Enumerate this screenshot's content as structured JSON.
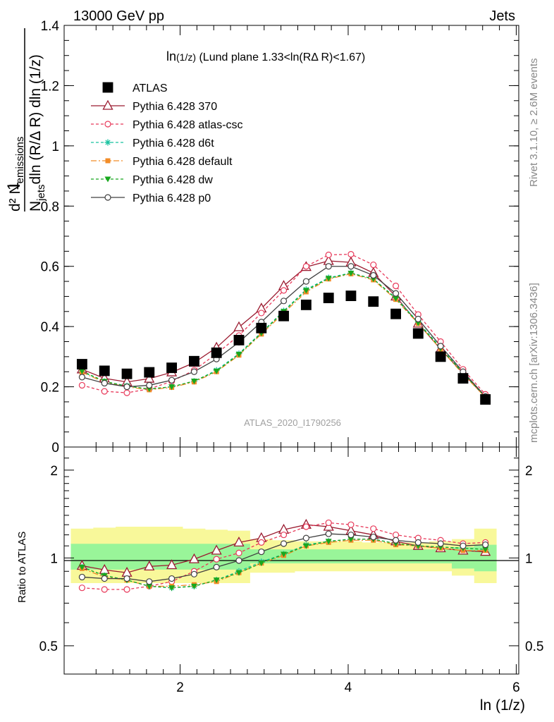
{
  "header": {
    "energy_label": "13000 GeV pp",
    "process_label": "Jets",
    "rivet_label": "Rivet 3.1.10, ≥ 2.6M events",
    "mcplots_label": "mcplots.cern.ch [arXiv:1306.3436]",
    "analysis_id": "ATLAS_2020_I1790256"
  },
  "main_panel": {
    "title_prefix": "ln",
    "title_frac": "(1/z)",
    "title_rest": " (Lund plane 1.33<ln(RΔ R)<1.67)",
    "ylabel": {
      "numerator": "d² N",
      "numerator_sub": "emissions",
      "denominator_1": "N",
      "denominator_sub": "jets",
      "denominator_2": "dln (R/Δ R) dln (1/z)",
      "prefix": "1"
    }
  },
  "ratio_panel": {
    "ylabel": "Ratio to ATLAS"
  },
  "xaxis": {
    "label": "ln (1/z)"
  },
  "colors": {
    "atlas": "#000000",
    "p370": "#9b1b30",
    "atlas_csc": "#e8395a",
    "d6t": "#19c2a0",
    "default": "#f28c28",
    "dw": "#18a81e",
    "p0": "#404040",
    "band_inner": "#99f599",
    "band_outer": "#f8f89a"
  },
  "chart_data": [
    {
      "type": "line",
      "x": [
        0.833,
        1.1,
        1.367,
        1.633,
        1.9,
        2.167,
        2.433,
        2.7,
        2.967,
        3.233,
        3.5,
        3.767,
        4.033,
        4.3,
        4.567,
        4.833,
        5.1,
        5.367,
        5.633
      ],
      "xlim": [
        0.62,
        6.03
      ],
      "ylim": [
        0,
        1.4
      ],
      "yticks": [
        0,
        0.2,
        0.4,
        0.6,
        0.8,
        1,
        1.2,
        1.4
      ],
      "xticks": [
        2,
        4,
        6
      ],
      "series": [
        {
          "name": "ATLAS",
          "marker": "square",
          "values": [
            0.275,
            0.253,
            0.243,
            0.248,
            0.263,
            0.285,
            0.313,
            0.355,
            0.395,
            0.435,
            0.472,
            0.495,
            0.502,
            0.483,
            0.442,
            0.377,
            0.3,
            0.228,
            0.158
          ]
        },
        {
          "name": "Pythia 6.428 370",
          "marker": "triangle-open",
          "values": [
            0.258,
            0.228,
            0.216,
            0.227,
            0.248,
            0.28,
            0.33,
            0.398,
            0.46,
            0.535,
            0.598,
            0.618,
            0.613,
            0.578,
            0.5,
            0.41,
            0.325,
            0.245,
            0.165
          ]
        },
        {
          "name": "Pythia 6.428 atlas-csc",
          "marker": "circle-open",
          "values": [
            0.205,
            0.185,
            0.18,
            0.193,
            0.218,
            0.255,
            0.31,
            0.37,
            0.445,
            0.52,
            0.6,
            0.638,
            0.64,
            0.605,
            0.535,
            0.44,
            0.35,
            0.258,
            0.175
          ]
        },
        {
          "name": "Pythia 6.428 d6t",
          "marker": "star",
          "values": [
            0.25,
            0.217,
            0.203,
            0.192,
            0.2,
            0.218,
            0.255,
            0.31,
            0.38,
            0.452,
            0.523,
            0.562,
            0.578,
            0.558,
            0.495,
            0.415,
            0.33,
            0.246,
            0.168
          ]
        },
        {
          "name": "Pythia 6.428 default",
          "marker": "square-small",
          "values": [
            0.248,
            0.215,
            0.2,
            0.19,
            0.198,
            0.216,
            0.25,
            0.305,
            0.375,
            0.445,
            0.515,
            0.558,
            0.575,
            0.555,
            0.49,
            0.41,
            0.325,
            0.242,
            0.165
          ]
        },
        {
          "name": "Pythia 6.428 dw",
          "marker": "triangle-down",
          "values": [
            0.252,
            0.218,
            0.202,
            0.193,
            0.2,
            0.219,
            0.252,
            0.308,
            0.378,
            0.45,
            0.52,
            0.56,
            0.577,
            0.558,
            0.493,
            0.412,
            0.328,
            0.245,
            0.167
          ]
        },
        {
          "name": "Pythia 6.428 p0",
          "marker": "circle-open",
          "values": [
            0.232,
            0.212,
            0.2,
            0.205,
            0.222,
            0.25,
            0.292,
            0.348,
            0.415,
            0.485,
            0.55,
            0.6,
            0.6,
            0.57,
            0.51,
            0.425,
            0.335,
            0.25,
            0.168
          ]
        }
      ]
    },
    {
      "type": "line",
      "title": "",
      "ylabel": "Ratio to ATLAS",
      "x": [
        0.833,
        1.1,
        1.367,
        1.633,
        1.9,
        2.167,
        2.433,
        2.7,
        2.967,
        3.233,
        3.5,
        3.767,
        4.033,
        4.3,
        4.567,
        4.833,
        5.1,
        5.367,
        5.633
      ],
      "ylim": [
        0.4,
        2.4
      ],
      "yscale": "log",
      "yticks": [
        0.5,
        1,
        2
      ],
      "band_inner": {
        "lo": [
          0.912,
          0.912,
          0.912,
          0.912,
          0.912,
          0.912,
          0.912,
          0.912,
          0.958,
          0.958,
          0.958,
          0.958,
          0.958,
          0.958,
          0.958,
          0.958,
          0.958,
          0.92,
          0.9
        ],
        "hi": [
          1.118,
          1.118,
          1.118,
          1.118,
          1.118,
          1.118,
          1.118,
          1.118,
          1.07,
          1.07,
          1.07,
          1.07,
          1.07,
          1.07,
          1.07,
          1.07,
          1.07,
          1.09,
          1.11
        ]
      },
      "band_outer": {
        "lo": [
          0.82,
          0.82,
          0.82,
          0.82,
          0.82,
          0.82,
          0.82,
          0.82,
          0.89,
          0.89,
          0.9,
          0.9,
          0.9,
          0.9,
          0.9,
          0.9,
          0.9,
          0.87,
          0.82
        ],
        "hi": [
          1.26,
          1.27,
          1.28,
          1.28,
          1.28,
          1.26,
          1.25,
          1.24,
          1.16,
          1.15,
          1.14,
          1.14,
          1.14,
          1.13,
          1.13,
          1.13,
          1.14,
          1.16,
          1.26
        ]
      },
      "series": [
        {
          "name": "Pythia 6.428 370",
          "values": [
            0.94,
            0.91,
            0.89,
            0.935,
            0.945,
            0.99,
            1.06,
            1.13,
            1.17,
            1.25,
            1.3,
            1.28,
            1.24,
            1.2,
            1.14,
            1.1,
            1.08,
            1.06,
            1.05
          ]
        },
        {
          "name": "Pythia 6.428 atlas-csc",
          "values": [
            0.79,
            0.78,
            0.78,
            0.8,
            0.83,
            0.9,
            0.99,
            1.04,
            1.13,
            1.2,
            1.28,
            1.32,
            1.3,
            1.26,
            1.2,
            1.17,
            1.15,
            1.12,
            1.13
          ]
        },
        {
          "name": "Pythia 6.428 d6t",
          "values": [
            0.93,
            0.87,
            0.84,
            0.8,
            0.79,
            0.8,
            0.84,
            0.9,
            0.97,
            1.03,
            1.11,
            1.14,
            1.16,
            1.16,
            1.12,
            1.1,
            1.09,
            1.08,
            1.07
          ]
        },
        {
          "name": "Pythia 6.428 default",
          "values": [
            0.92,
            0.86,
            0.84,
            0.8,
            0.8,
            0.81,
            0.83,
            0.89,
            0.96,
            1.02,
            1.1,
            1.13,
            1.15,
            1.15,
            1.11,
            1.1,
            1.08,
            1.06,
            1.06
          ]
        },
        {
          "name": "Pythia 6.428 dw",
          "values": [
            0.93,
            0.87,
            0.84,
            0.8,
            0.79,
            0.8,
            0.84,
            0.89,
            0.96,
            1.03,
            1.1,
            1.14,
            1.16,
            1.16,
            1.12,
            1.1,
            1.09,
            1.08,
            1.07
          ]
        },
        {
          "name": "Pythia 6.428 p0",
          "values": [
            0.86,
            0.85,
            0.85,
            0.83,
            0.85,
            0.88,
            0.93,
            0.98,
            1.05,
            1.12,
            1.17,
            1.21,
            1.2,
            1.18,
            1.15,
            1.13,
            1.12,
            1.1,
            1.11
          ]
        }
      ]
    }
  ]
}
